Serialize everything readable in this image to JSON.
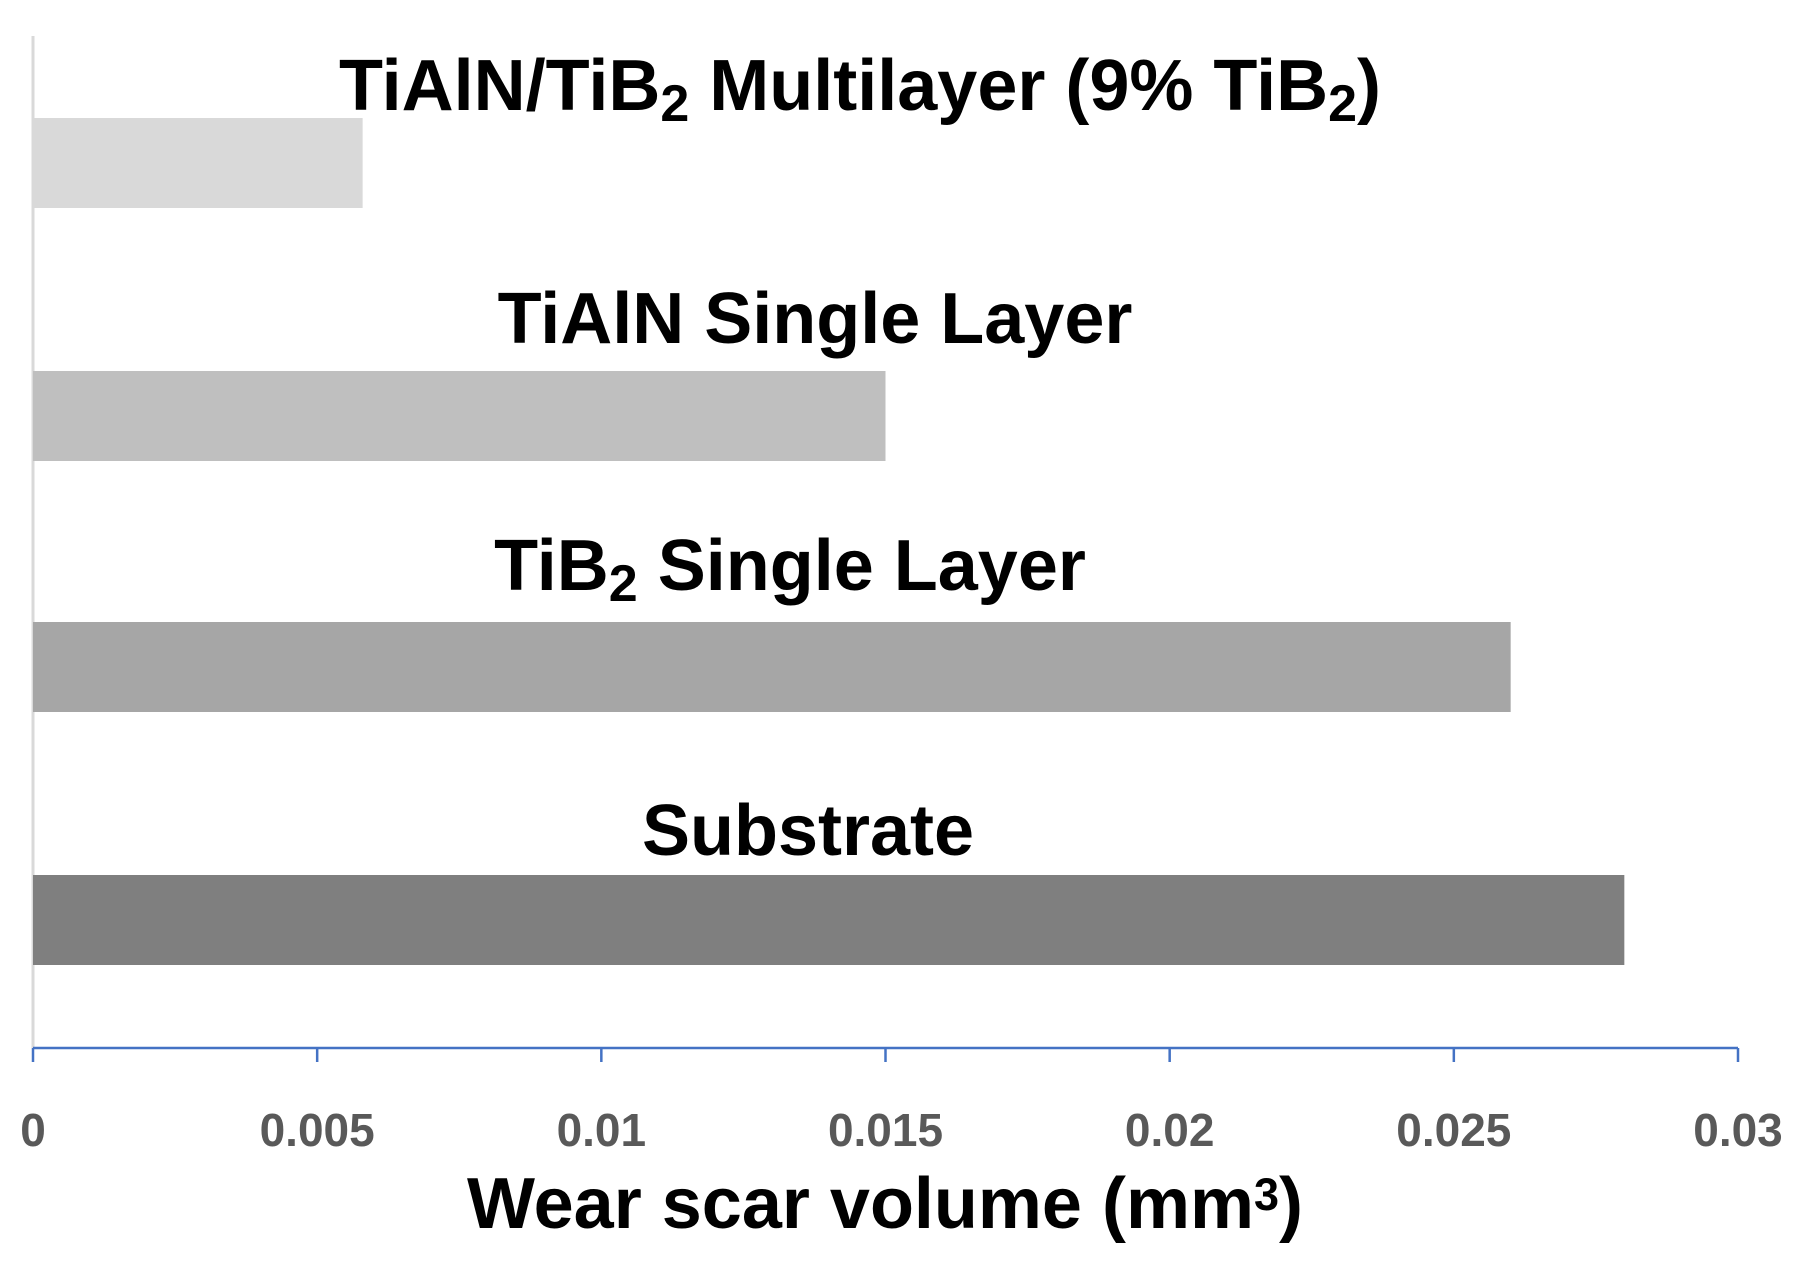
{
  "chart_data": {
    "type": "bar",
    "orientation": "horizontal",
    "categories": [
      {
        "parts": [
          {
            "t": "TiAlN/TiB"
          },
          {
            "t": "2",
            "sub": true
          },
          {
            "t": " Multilayer (9% TiB"
          },
          {
            "t": "2",
            "sub": true
          },
          {
            "t": ")"
          }
        ]
      },
      {
        "parts": [
          {
            "t": "TiAlN Single Layer"
          }
        ]
      },
      {
        "parts": [
          {
            "t": "TiB"
          },
          {
            "t": "2",
            "sub": true
          },
          {
            "t": " Single Layer"
          }
        ]
      },
      {
        "parts": [
          {
            "t": "Substrate"
          }
        ]
      }
    ],
    "values": [
      0.0058,
      0.015,
      0.026,
      0.028
    ],
    "colors": [
      "#d9d9d9",
      "#bfbfbf",
      "#a6a6a6",
      "#7f7f7f"
    ],
    "xlim": [
      0,
      0.03
    ],
    "xticks": [
      "0",
      "0.005",
      "0.01",
      "0.015",
      "0.02",
      "0.025",
      "0.03"
    ],
    "xtick_values": [
      0,
      0.005,
      0.01,
      0.015,
      0.02,
      0.025,
      0.03
    ],
    "xlabel": {
      "parts": [
        {
          "t": "Wear scar volume (mm"
        },
        {
          "t": "3",
          "sup": true
        },
        {
          "t": ")"
        }
      ]
    },
    "axis_color": "#4472c4",
    "legend": "none",
    "grid": false
  }
}
